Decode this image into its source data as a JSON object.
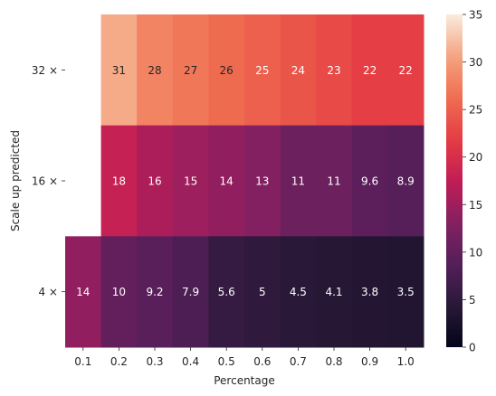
{
  "chart_data": {
    "type": "heatmap",
    "xlabel": "Percentage",
    "ylabel": "Scale up predicted",
    "x_categories": [
      "0.1",
      "0.2",
      "0.3",
      "0.4",
      "0.5",
      "0.6",
      "0.7",
      "0.8",
      "0.9",
      "1.0"
    ],
    "y_categories": [
      "32 ×",
      "16 ×",
      "4 ×"
    ],
    "values": [
      [
        null,
        31,
        28,
        27,
        26,
        25,
        24,
        23,
        22,
        22
      ],
      [
        null,
        18,
        16,
        15,
        14,
        13,
        11,
        11,
        9.6,
        8.9
      ],
      [
        14,
        10,
        9.2,
        7.9,
        5.6,
        5,
        4.5,
        4.1,
        3.8,
        3.5
      ]
    ],
    "annotations": [
      [
        "",
        "31",
        "28",
        "27",
        "26",
        "25",
        "24",
        "23",
        "22",
        "22"
      ],
      [
        "",
        "18",
        "16",
        "15",
        "14",
        "13",
        "11",
        "11",
        "9.6",
        "8.9"
      ],
      [
        "14",
        "10",
        "9.2",
        "7.9",
        "5.6",
        "5",
        "4.5",
        "4.1",
        "3.8",
        "3.5"
      ]
    ],
    "colorbar": {
      "range": [
        0,
        35
      ],
      "ticks": [
        "0",
        "5",
        "10",
        "15",
        "20",
        "25",
        "30",
        "35"
      ],
      "colormap": "rocket"
    }
  }
}
